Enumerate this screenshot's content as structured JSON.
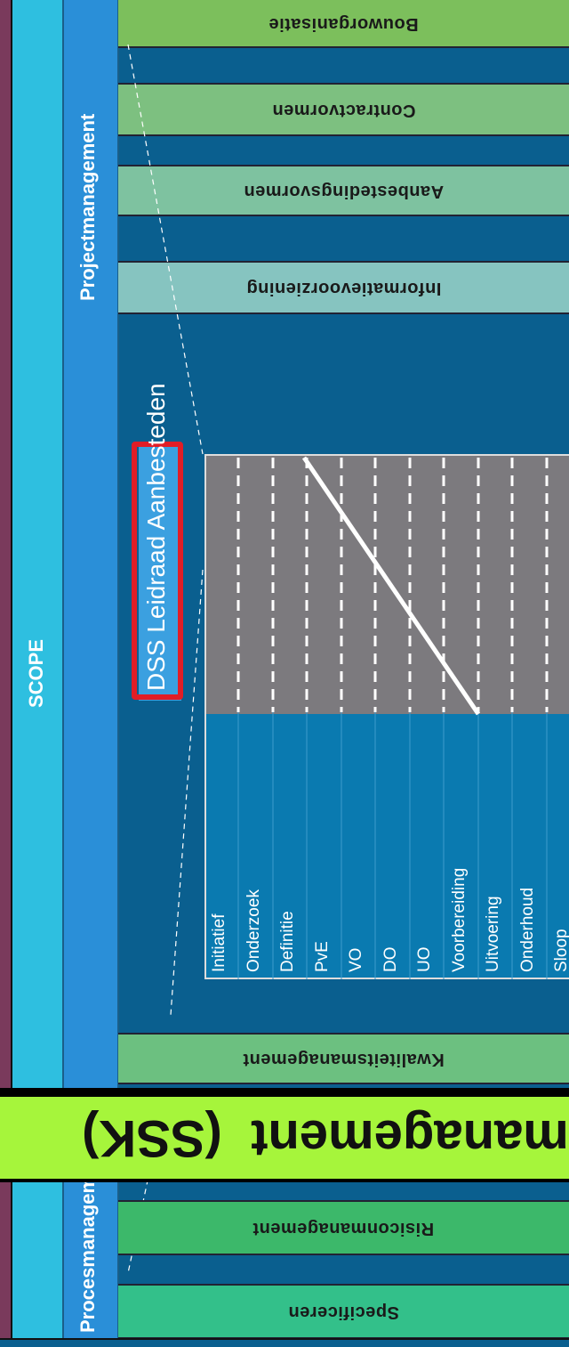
{
  "scope": {
    "label": "SCOPE"
  },
  "columns": {
    "project": "Projectmanagement",
    "process": "Procesmanagement"
  },
  "project_bars": [
    {
      "label": "Bouworganisatie",
      "color": "#7cbf5c"
    },
    {
      "label": "Contractvormen",
      "color": "#7dc080"
    },
    {
      "label": "Aanbestedingsvormen",
      "color": "#7ec2a0"
    },
    {
      "label": "Informatievoorziening",
      "color": "#86c4c0"
    }
  ],
  "process_bars": [
    {
      "label": "Kwaliteitsmanagement",
      "color": "#6cc080"
    },
    {
      "label": "Risiconmanagement",
      "color": "#3cb86a"
    },
    {
      "label": "Specificeren",
      "color": "#33c08a"
    }
  ],
  "dss": {
    "title": "DSS Leidraad Aanbesteden"
  },
  "phases": [
    "Initiatief",
    "Onderzoek",
    "Definitie",
    "PvE",
    "VO",
    "DO",
    "UO",
    "Voorbereiding",
    "Uitvoering",
    "Onderhoud",
    "Sloop"
  ],
  "banner": {
    "text": "management  (SSK)",
    "color": "#a6f53b"
  },
  "colors": {
    "scope_bg": "#2ebfe0",
    "column_bg": "#2a8fd8",
    "main_bg": "#0a7ab0",
    "grid_bg": "#7c7a7e",
    "frame_left": "#7a3a5c",
    "highlight": "#e11d26"
  }
}
